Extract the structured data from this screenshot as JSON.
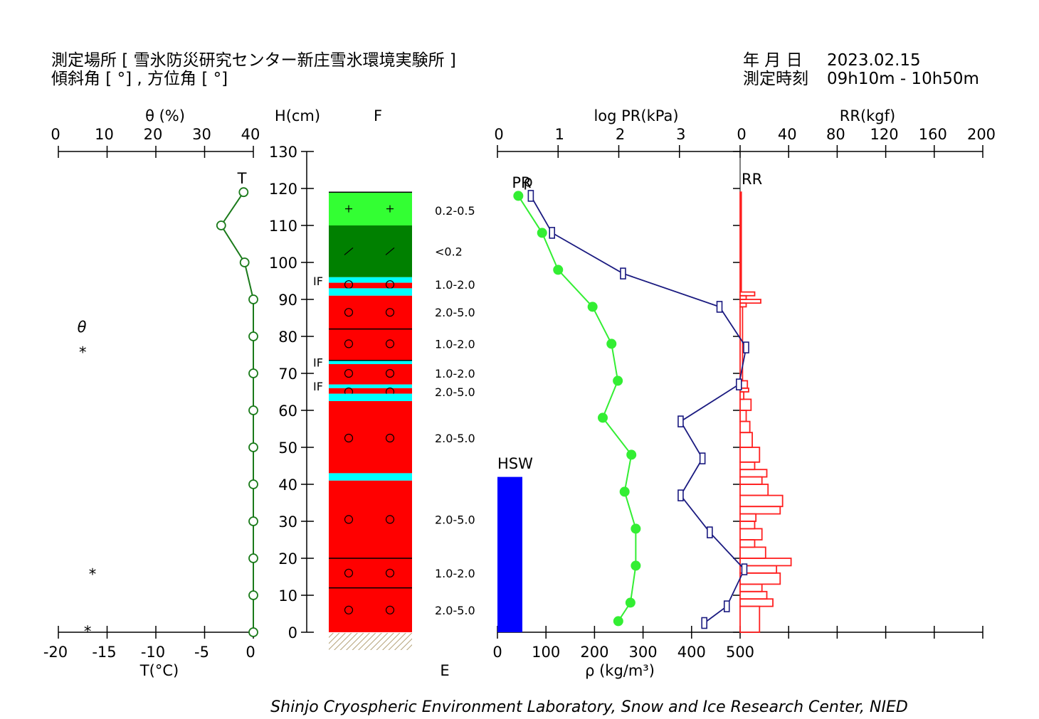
{
  "header": {
    "site_label": "測定場所 [ 雪氷防災研究センター新庄雪氷環境実験所 ]",
    "slope_label": "傾斜角 [ °] , 方位角 [ °]",
    "date_label": "年 月 日",
    "date_value": "2023.02.15",
    "time_label": "測定時刻",
    "time_value": "09h10m - 10h50m"
  },
  "footer": {
    "credit": "Shinjo Cryospheric Environment Laboratory, Snow and Ice Research Center, NIED"
  },
  "colors": {
    "temperature": "#1a7a1a",
    "density": "#33ee33",
    "pr": "#1a1a80",
    "rr": "#ff2020",
    "hsw": "#0000ff",
    "layer_red": "#ff0000",
    "layer_green_light": "#33ff33",
    "layer_green_dark": "#008000",
    "ice": "#00ffff"
  },
  "chart_data": {
    "type": "snow-profile",
    "axes": {
      "height": {
        "label": "H(cm)",
        "range": [
          0,
          130
        ],
        "ticks": [
          "0",
          "10",
          "20",
          "30",
          "40",
          "50",
          "60",
          "70",
          "80",
          "90",
          "100",
          "110",
          "120",
          "130"
        ]
      },
      "temperature": {
        "label": "T(°C)",
        "range": [
          -20,
          0
        ],
        "ticks": [
          "-20",
          "-15",
          "-10",
          "-5",
          "0"
        ]
      },
      "theta": {
        "label": "θ (%)",
        "range": [
          0,
          40
        ],
        "ticks": [
          "0",
          "10",
          "20",
          "30",
          "40"
        ]
      },
      "density": {
        "label": "ρ (kg/m³)",
        "range": [
          0,
          500
        ],
        "ticks": [
          "0",
          "100",
          "200",
          "300",
          "400",
          "500"
        ]
      },
      "log_pr": {
        "label": "log PR(kPa)",
        "range": [
          0,
          4
        ],
        "ticks": [
          "0",
          "1",
          "2",
          "3",
          "0"
        ]
      },
      "rr": {
        "label": "RR(kgf)",
        "range": [
          0,
          200
        ],
        "ticks": [
          "40",
          "80",
          "120",
          "160",
          "200"
        ]
      }
    },
    "column_labels": {
      "top": "F",
      "bottom": "E"
    },
    "theta_label": "θ",
    "theta_marks": [
      {
        "h": 77,
        "theta": 5
      },
      {
        "h": 17,
        "theta": 7
      },
      {
        "h": 1.5,
        "theta": 6
      }
    ],
    "theta_symbol": "*",
    "temperature": {
      "label": "T",
      "points": [
        {
          "h": 119,
          "t": -1.0
        },
        {
          "h": 110,
          "t": -3.3
        },
        {
          "h": 100,
          "t": -0.9
        },
        {
          "h": 90,
          "t": 0
        },
        {
          "h": 80,
          "t": 0
        },
        {
          "h": 70,
          "t": 0
        },
        {
          "h": 60,
          "t": 0
        },
        {
          "h": 50,
          "t": 0
        },
        {
          "h": 40,
          "t": 0
        },
        {
          "h": 30,
          "t": 0
        },
        {
          "h": 20,
          "t": 0
        },
        {
          "h": 10,
          "t": 0
        },
        {
          "h": 0,
          "t": 0
        }
      ]
    },
    "density": {
      "label": "ρ",
      "points": [
        {
          "h": 118,
          "rho": 43
        },
        {
          "h": 108,
          "rho": 92
        },
        {
          "h": 98,
          "rho": 125
        },
        {
          "h": 88,
          "rho": 196
        },
        {
          "h": 78,
          "rho": 235
        },
        {
          "h": 68,
          "rho": 248
        },
        {
          "h": 58,
          "rho": 217
        },
        {
          "h": 48,
          "rho": 276
        },
        {
          "h": 38,
          "rho": 262
        },
        {
          "h": 28,
          "rho": 285
        },
        {
          "h": 18,
          "rho": 285
        },
        {
          "h": 8,
          "rho": 274
        },
        {
          "h": 3,
          "rho": 249
        }
      ]
    },
    "pr": {
      "label": "PR",
      "points": [
        {
          "h": 118,
          "log_pr": 0.55
        },
        {
          "h": 108,
          "log_pr": 0.9
        },
        {
          "h": 97,
          "log_pr": 2.07
        },
        {
          "h": 88,
          "log_pr": 3.66
        },
        {
          "h": 77,
          "log_pr": 4.1
        },
        {
          "h": 67,
          "log_pr": 3.98
        },
        {
          "h": 57,
          "log_pr": 3.02
        },
        {
          "h": 47,
          "log_pr": 3.38
        },
        {
          "h": 37,
          "log_pr": 3.02
        },
        {
          "h": 27,
          "log_pr": 3.5
        },
        {
          "h": 17,
          "log_pr": 4.07
        },
        {
          "h": 7,
          "log_pr": 3.78
        },
        {
          "h": 2.5,
          "log_pr": 3.41
        }
      ]
    },
    "rr": {
      "label": "RR",
      "segments": [
        {
          "h0": 92,
          "h1": 119,
          "v": 1
        },
        {
          "h0": 91,
          "h1": 92,
          "v": 12
        },
        {
          "h0": 90,
          "h1": 91,
          "v": 5
        },
        {
          "h0": 89,
          "h1": 90,
          "v": 17
        },
        {
          "h0": 88,
          "h1": 89,
          "v": 5
        },
        {
          "h0": 68,
          "h1": 88,
          "v": 2
        },
        {
          "h0": 66,
          "h1": 68,
          "v": 6
        },
        {
          "h0": 65,
          "h1": 66,
          "v": 7
        },
        {
          "h0": 63,
          "h1": 65,
          "v": 3
        },
        {
          "h0": 60,
          "h1": 63,
          "v": 9
        },
        {
          "h0": 57,
          "h1": 60,
          "v": 5
        },
        {
          "h0": 54,
          "h1": 57,
          "v": 8
        },
        {
          "h0": 50,
          "h1": 54,
          "v": 10
        },
        {
          "h0": 46,
          "h1": 50,
          "v": 16
        },
        {
          "h0": 44,
          "h1": 46,
          "v": 12
        },
        {
          "h0": 42,
          "h1": 44,
          "v": 22
        },
        {
          "h0": 40,
          "h1": 42,
          "v": 18
        },
        {
          "h0": 37,
          "h1": 40,
          "v": 23
        },
        {
          "h0": 34,
          "h1": 37,
          "v": 35
        },
        {
          "h0": 32,
          "h1": 34,
          "v": 33
        },
        {
          "h0": 30,
          "h1": 32,
          "v": 13
        },
        {
          "h0": 28,
          "h1": 30,
          "v": 12
        },
        {
          "h0": 25,
          "h1": 28,
          "v": 18
        },
        {
          "h0": 23,
          "h1": 25,
          "v": 12
        },
        {
          "h0": 20,
          "h1": 23,
          "v": 21
        },
        {
          "h0": 18,
          "h1": 20,
          "v": 42
        },
        {
          "h0": 16,
          "h1": 18,
          "v": 30
        },
        {
          "h0": 13,
          "h1": 16,
          "v": 33
        },
        {
          "h0": 11,
          "h1": 13,
          "v": 18
        },
        {
          "h0": 9,
          "h1": 11,
          "v": 22
        },
        {
          "h0": 7,
          "h1": 9,
          "v": 27
        },
        {
          "h0": 0,
          "h1": 7,
          "v": 16
        }
      ]
    },
    "hsw": {
      "label": "HSW",
      "value": 42
    },
    "layers": [
      {
        "h0": 110,
        "h1": 119,
        "color": "layer_green_light",
        "symbol": "+",
        "grain": "0.2-0.5",
        "grain_h": 114
      },
      {
        "h0": 96,
        "h1": 110,
        "color": "layer_green_dark",
        "symbol": "/",
        "grain": "<0.2",
        "grain_h": 103
      },
      {
        "h0": 94.5,
        "h1": 96,
        "color": "ice"
      },
      {
        "h0": 93,
        "h1": 94.5,
        "color": "layer_red",
        "symbol": "o",
        "symbol_h": 94,
        "grain": "1.0-2.0",
        "grain_h": 94
      },
      {
        "h0": 91,
        "h1": 93,
        "color": "ice"
      },
      {
        "h0": 82,
        "h1": 91,
        "color": "layer_red",
        "symbol": "o",
        "symbol_h": 86.5,
        "grain": "2.0-5.0",
        "grain_h": 86.5
      },
      {
        "h0": 73.5,
        "h1": 82,
        "color": "layer_red",
        "symbol": "o",
        "symbol_h": 78,
        "grain": "1.0-2.0",
        "grain_h": 78
      },
      {
        "h0": 72.5,
        "h1": 73.5,
        "color": "ice"
      },
      {
        "h0": 67,
        "h1": 72.5,
        "color": "layer_red",
        "symbol": "o",
        "symbol_h": 70,
        "grain": "1.0-2.0",
        "grain_h": 70
      },
      {
        "h0": 66,
        "h1": 67,
        "color": "ice"
      },
      {
        "h0": 64.5,
        "h1": 66,
        "color": "layer_red",
        "symbol": "o",
        "symbol_h": 65,
        "grain": "2.0-5.0",
        "grain_h": 65
      },
      {
        "h0": 62.5,
        "h1": 64.5,
        "color": "ice"
      },
      {
        "h0": 43,
        "h1": 62.5,
        "color": "layer_red",
        "symbol": "o",
        "symbol_h": 52.5,
        "grain": "2.0-5.0",
        "grain_h": 52.5
      },
      {
        "h0": 41,
        "h1": 43,
        "color": "ice"
      },
      {
        "h0": 20,
        "h1": 41,
        "color": "layer_red",
        "symbol": "o",
        "symbol_h": 30.5,
        "grain": "2.0-5.0",
        "grain_h": 30.5
      },
      {
        "h0": 12,
        "h1": 20,
        "color": "layer_red",
        "symbol": "o",
        "symbol_h": 16,
        "grain": "1.0-2.0",
        "grain_h": 16
      },
      {
        "h0": 0,
        "h1": 12,
        "color": "layer_red",
        "symbol": "o",
        "symbol_h": 6,
        "grain": "2.0-5.0",
        "grain_h": 6
      }
    ],
    "layer_boundaries": [
      119,
      82,
      73.5,
      20,
      12
    ],
    "if_labels": [
      {
        "text": "IF",
        "h": 95
      },
      {
        "text": "IF",
        "h": 73
      },
      {
        "text": "IF",
        "h": 66.5
      }
    ]
  }
}
